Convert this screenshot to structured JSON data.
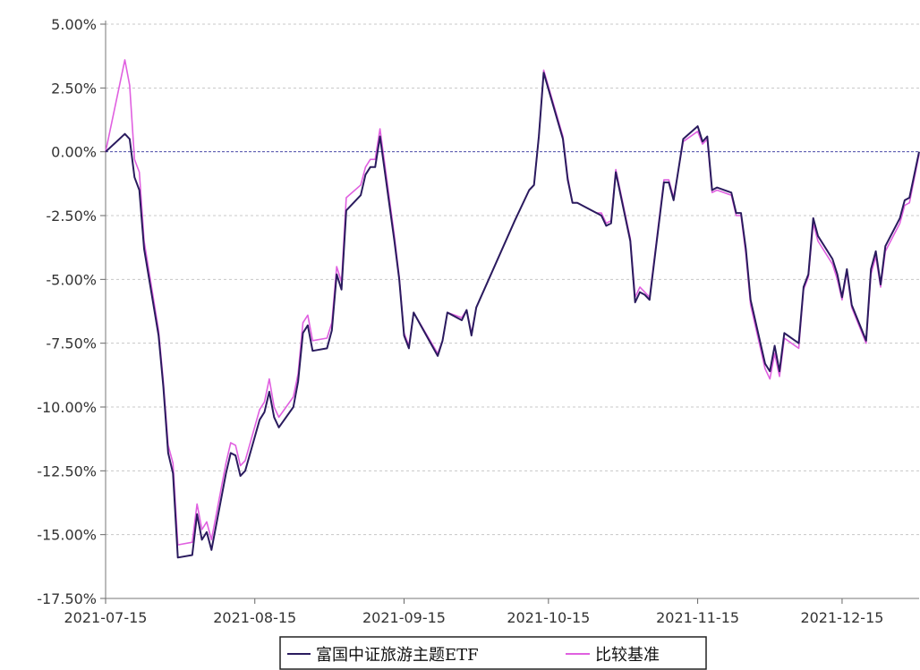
{
  "chart_data": {
    "type": "line",
    "title": "",
    "xlabel": "",
    "ylabel": "",
    "ylim": [
      -17.5,
      5.0
    ],
    "yticks": [
      "5.00%",
      "2.50%",
      "0.00%",
      "-2.50%",
      "-5.00%",
      "-7.50%",
      "-10.00%",
      "-12.50%",
      "-15.00%",
      "-17.50%"
    ],
    "ytick_values": [
      5.0,
      2.5,
      0.0,
      -2.5,
      -5.0,
      -7.5,
      -10.0,
      -12.5,
      -15.0,
      -17.5
    ],
    "x_range": [
      "2021-07-15",
      "2021-12-31"
    ],
    "xticks": [
      "2021-07-15",
      "2021-08-15",
      "2021-09-15",
      "2021-10-15",
      "2021-11-15",
      "2021-12-15"
    ],
    "grid": true,
    "legend_position": "bottom-center",
    "series": [
      {
        "name": "富国中证旅游主题ETF",
        "color": "#2a1b5e",
        "points": [
          [
            "2021-07-15",
            0.0
          ],
          [
            "2021-07-19",
            0.7
          ],
          [
            "2021-07-20",
            0.5
          ],
          [
            "2021-07-21",
            -1.0
          ],
          [
            "2021-07-22",
            -1.5
          ],
          [
            "2021-07-23",
            -3.8
          ],
          [
            "2021-07-26",
            -7.2
          ],
          [
            "2021-07-27",
            -9.2
          ],
          [
            "2021-07-28",
            -11.8
          ],
          [
            "2021-07-29",
            -12.6
          ],
          [
            "2021-07-30",
            -15.9
          ],
          [
            "2021-08-02",
            -15.8
          ],
          [
            "2021-08-03",
            -14.2
          ],
          [
            "2021-08-04",
            -15.2
          ],
          [
            "2021-08-05",
            -14.9
          ],
          [
            "2021-08-06",
            -15.6
          ],
          [
            "2021-08-09",
            -12.6
          ],
          [
            "2021-08-10",
            -11.8
          ],
          [
            "2021-08-11",
            -11.9
          ],
          [
            "2021-08-12",
            -12.7
          ],
          [
            "2021-08-13",
            -12.5
          ],
          [
            "2021-08-16",
            -10.5
          ],
          [
            "2021-08-17",
            -10.2
          ],
          [
            "2021-08-18",
            -9.4
          ],
          [
            "2021-08-19",
            -10.4
          ],
          [
            "2021-08-20",
            -10.8
          ],
          [
            "2021-08-23",
            -10.0
          ],
          [
            "2021-08-24",
            -9.0
          ],
          [
            "2021-08-25",
            -7.1
          ],
          [
            "2021-08-26",
            -6.8
          ],
          [
            "2021-08-27",
            -7.8
          ],
          [
            "2021-08-30",
            -7.7
          ],
          [
            "2021-08-31",
            -7.0
          ],
          [
            "2021-09-01",
            -4.8
          ],
          [
            "2021-09-02",
            -5.4
          ],
          [
            "2021-09-03",
            -2.3
          ],
          [
            "2021-09-06",
            -1.7
          ],
          [
            "2021-09-07",
            -0.9
          ],
          [
            "2021-09-08",
            -0.6
          ],
          [
            "2021-09-09",
            -0.6
          ],
          [
            "2021-09-10",
            0.6
          ],
          [
            "2021-09-13",
            -3.5
          ],
          [
            "2021-09-14",
            -5.0
          ],
          [
            "2021-09-15",
            -7.2
          ],
          [
            "2021-09-16",
            -7.7
          ],
          [
            "2021-09-17",
            -6.3
          ],
          [
            "2021-09-22",
            -8.0
          ],
          [
            "2021-09-23",
            -7.4
          ],
          [
            "2021-09-24",
            -6.3
          ],
          [
            "2021-09-27",
            -6.6
          ],
          [
            "2021-09-28",
            -6.2
          ],
          [
            "2021-09-29",
            -7.2
          ],
          [
            "2021-09-30",
            -6.1
          ],
          [
            "2021-10-08",
            -2.7
          ],
          [
            "2021-10-11",
            -1.5
          ],
          [
            "2021-10-12",
            -1.3
          ],
          [
            "2021-10-13",
            0.6
          ],
          [
            "2021-10-14",
            3.1
          ],
          [
            "2021-10-18",
            0.5
          ],
          [
            "2021-10-19",
            -1.1
          ],
          [
            "2021-10-20",
            -2.0
          ],
          [
            "2021-10-21",
            -2.0
          ],
          [
            "2021-10-22",
            -2.1
          ],
          [
            "2021-10-25",
            -2.4
          ],
          [
            "2021-10-26",
            -2.5
          ],
          [
            "2021-10-27",
            -2.9
          ],
          [
            "2021-10-28",
            -2.8
          ],
          [
            "2021-10-29",
            -0.8
          ],
          [
            "2021-11-01",
            -3.5
          ],
          [
            "2021-11-02",
            -5.9
          ],
          [
            "2021-11-03",
            -5.5
          ],
          [
            "2021-11-04",
            -5.6
          ],
          [
            "2021-11-05",
            -5.8
          ],
          [
            "2021-11-08",
            -1.2
          ],
          [
            "2021-11-09",
            -1.2
          ],
          [
            "2021-11-10",
            -1.9
          ],
          [
            "2021-11-11",
            -0.7
          ],
          [
            "2021-11-12",
            0.5
          ],
          [
            "2021-11-15",
            1.0
          ],
          [
            "2021-11-16",
            0.4
          ],
          [
            "2021-11-17",
            0.6
          ],
          [
            "2021-11-18",
            -1.5
          ],
          [
            "2021-11-19",
            -1.4
          ],
          [
            "2021-11-22",
            -1.6
          ],
          [
            "2021-11-23",
            -2.4
          ],
          [
            "2021-11-24",
            -2.4
          ],
          [
            "2021-11-25",
            -3.8
          ],
          [
            "2021-11-26",
            -5.8
          ],
          [
            "2021-11-29",
            -8.3
          ],
          [
            "2021-11-30",
            -8.6
          ],
          [
            "2021-12-01",
            -7.6
          ],
          [
            "2021-12-02",
            -8.6
          ],
          [
            "2021-12-03",
            -7.1
          ],
          [
            "2021-12-06",
            -7.5
          ],
          [
            "2021-12-07",
            -5.3
          ],
          [
            "2021-12-08",
            -4.8
          ],
          [
            "2021-12-09",
            -2.6
          ],
          [
            "2021-12-10",
            -3.3
          ],
          [
            "2021-12-13",
            -4.2
          ],
          [
            "2021-12-14",
            -4.8
          ],
          [
            "2021-12-15",
            -5.7
          ],
          [
            "2021-12-16",
            -4.6
          ],
          [
            "2021-12-17",
            -6.0
          ],
          [
            "2021-12-20",
            -7.4
          ],
          [
            "2021-12-21",
            -4.6
          ],
          [
            "2021-12-22",
            -3.9
          ],
          [
            "2021-12-23",
            -5.2
          ],
          [
            "2021-12-24",
            -3.7
          ],
          [
            "2021-12-27",
            -2.6
          ],
          [
            "2021-12-28",
            -1.9
          ],
          [
            "2021-12-29",
            -1.8
          ],
          [
            "2021-12-31",
            0.0
          ]
        ]
      },
      {
        "name": "比较基准",
        "color": "#e060e0",
        "points": [
          [
            "2021-07-15",
            0.0
          ],
          [
            "2021-07-19",
            3.6
          ],
          [
            "2021-07-20",
            2.6
          ],
          [
            "2021-07-21",
            -0.3
          ],
          [
            "2021-07-22",
            -0.8
          ],
          [
            "2021-07-23",
            -3.5
          ],
          [
            "2021-07-26",
            -7.0
          ],
          [
            "2021-07-27",
            -9.0
          ],
          [
            "2021-07-28",
            -11.5
          ],
          [
            "2021-07-29",
            -12.2
          ],
          [
            "2021-07-30",
            -15.4
          ],
          [
            "2021-08-02",
            -15.3
          ],
          [
            "2021-08-03",
            -13.8
          ],
          [
            "2021-08-04",
            -14.8
          ],
          [
            "2021-08-05",
            -14.5
          ],
          [
            "2021-08-06",
            -15.2
          ],
          [
            "2021-08-09",
            -12.2
          ],
          [
            "2021-08-10",
            -11.4
          ],
          [
            "2021-08-11",
            -11.5
          ],
          [
            "2021-08-12",
            -12.3
          ],
          [
            "2021-08-13",
            -12.1
          ],
          [
            "2021-08-16",
            -10.1
          ],
          [
            "2021-08-17",
            -9.8
          ],
          [
            "2021-08-18",
            -8.9
          ],
          [
            "2021-08-19",
            -10.0
          ],
          [
            "2021-08-20",
            -10.4
          ],
          [
            "2021-08-23",
            -9.6
          ],
          [
            "2021-08-24",
            -8.7
          ],
          [
            "2021-08-25",
            -6.7
          ],
          [
            "2021-08-26",
            -6.4
          ],
          [
            "2021-08-27",
            -7.4
          ],
          [
            "2021-08-30",
            -7.3
          ],
          [
            "2021-08-31",
            -6.7
          ],
          [
            "2021-09-01",
            -4.5
          ],
          [
            "2021-09-02",
            -5.1
          ],
          [
            "2021-09-03",
            -1.8
          ],
          [
            "2021-09-06",
            -1.3
          ],
          [
            "2021-09-07",
            -0.6
          ],
          [
            "2021-09-08",
            -0.3
          ],
          [
            "2021-09-09",
            -0.3
          ],
          [
            "2021-09-10",
            0.9
          ],
          [
            "2021-09-13",
            -3.3
          ],
          [
            "2021-09-14",
            -4.9
          ],
          [
            "2021-09-15",
            -7.1
          ],
          [
            "2021-09-16",
            -7.6
          ],
          [
            "2021-09-17",
            -6.3
          ],
          [
            "2021-09-22",
            -7.9
          ],
          [
            "2021-09-23",
            -7.4
          ],
          [
            "2021-09-24",
            -6.3
          ],
          [
            "2021-09-27",
            -6.5
          ],
          [
            "2021-09-28",
            -6.2
          ],
          [
            "2021-09-29",
            -7.1
          ],
          [
            "2021-09-30",
            -6.1
          ],
          [
            "2021-10-08",
            -2.7
          ],
          [
            "2021-10-11",
            -1.5
          ],
          [
            "2021-10-12",
            -1.3
          ],
          [
            "2021-10-13",
            0.6
          ],
          [
            "2021-10-14",
            3.2
          ],
          [
            "2021-10-18",
            0.6
          ],
          [
            "2021-10-19",
            -1.0
          ],
          [
            "2021-10-20",
            -2.0
          ],
          [
            "2021-10-21",
            -2.0
          ],
          [
            "2021-10-22",
            -2.1
          ],
          [
            "2021-10-25",
            -2.4
          ],
          [
            "2021-10-26",
            -2.4
          ],
          [
            "2021-10-27",
            -2.8
          ],
          [
            "2021-10-28",
            -2.7
          ],
          [
            "2021-10-29",
            -0.7
          ],
          [
            "2021-11-01",
            -3.4
          ],
          [
            "2021-11-02",
            -5.7
          ],
          [
            "2021-11-03",
            -5.3
          ],
          [
            "2021-11-04",
            -5.5
          ],
          [
            "2021-11-05",
            -5.7
          ],
          [
            "2021-11-08",
            -1.1
          ],
          [
            "2021-11-09",
            -1.1
          ],
          [
            "2021-11-10",
            -1.8
          ],
          [
            "2021-11-11",
            -0.7
          ],
          [
            "2021-11-12",
            0.4
          ],
          [
            "2021-11-15",
            0.8
          ],
          [
            "2021-11-16",
            0.3
          ],
          [
            "2021-11-17",
            0.5
          ],
          [
            "2021-11-18",
            -1.6
          ],
          [
            "2021-11-19",
            -1.5
          ],
          [
            "2021-11-22",
            -1.7
          ],
          [
            "2021-11-23",
            -2.5
          ],
          [
            "2021-11-24",
            -2.5
          ],
          [
            "2021-11-25",
            -4.0
          ],
          [
            "2021-11-26",
            -6.0
          ],
          [
            "2021-11-29",
            -8.5
          ],
          [
            "2021-11-30",
            -8.9
          ],
          [
            "2021-12-01",
            -7.9
          ],
          [
            "2021-12-02",
            -8.8
          ],
          [
            "2021-12-03",
            -7.3
          ],
          [
            "2021-12-06",
            -7.7
          ],
          [
            "2021-12-07",
            -5.4
          ],
          [
            "2021-12-08",
            -4.9
          ],
          [
            "2021-12-09",
            -2.8
          ],
          [
            "2021-12-10",
            -3.5
          ],
          [
            "2021-12-13",
            -4.4
          ],
          [
            "2021-12-14",
            -5.0
          ],
          [
            "2021-12-15",
            -5.8
          ],
          [
            "2021-12-16",
            -4.7
          ],
          [
            "2021-12-17",
            -6.1
          ],
          [
            "2021-12-20",
            -7.5
          ],
          [
            "2021-12-21",
            -4.8
          ],
          [
            "2021-12-22",
            -4.1
          ],
          [
            "2021-12-23",
            -5.3
          ],
          [
            "2021-12-24",
            -3.9
          ],
          [
            "2021-12-27",
            -2.8
          ],
          [
            "2021-12-28",
            -2.1
          ],
          [
            "2021-12-29",
            -2.0
          ],
          [
            "2021-12-31",
            -0.1
          ]
        ]
      }
    ]
  }
}
